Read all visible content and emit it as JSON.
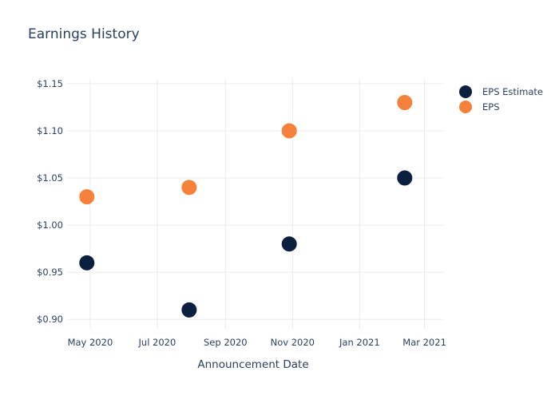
{
  "chart_data": {
    "type": "scatter",
    "title": "Earnings History",
    "xlabel": "Announcement Date",
    "ylabel": "",
    "x_axis": {
      "type": "date",
      "range": [
        "2020-04-10",
        "2021-03-18"
      ],
      "ticks": [
        {
          "date": "2020-05-01",
          "label": "May 2020"
        },
        {
          "date": "2020-07-01",
          "label": "Jul 2020"
        },
        {
          "date": "2020-09-01",
          "label": "Sep 2020"
        },
        {
          "date": "2020-11-01",
          "label": "Nov 2020"
        },
        {
          "date": "2021-01-01",
          "label": "Jan 2021"
        },
        {
          "date": "2021-03-01",
          "label": "Mar 2021"
        }
      ]
    },
    "y_axis": {
      "range": [
        0.89,
        1.155
      ],
      "ticks": [
        {
          "value": 0.9,
          "label": "$0.90"
        },
        {
          "value": 0.95,
          "label": "$0.95"
        },
        {
          "value": 1.0,
          "label": "$1.00"
        },
        {
          "value": 1.05,
          "label": "$1.05"
        },
        {
          "value": 1.1,
          "label": "$1.10"
        },
        {
          "value": 1.15,
          "label": "$1.15"
        }
      ]
    },
    "grid": true,
    "legend_position": "top-right",
    "series": [
      {
        "name": "EPS Estimate",
        "color": "#0b1f3f",
        "points": [
          {
            "x": "2020-04-28",
            "y": 0.96
          },
          {
            "x": "2020-07-30",
            "y": 0.91
          },
          {
            "x": "2020-10-29",
            "y": 0.98
          },
          {
            "x": "2021-02-11",
            "y": 1.05
          }
        ]
      },
      {
        "name": "EPS",
        "color": "#f5813b",
        "points": [
          {
            "x": "2020-04-28",
            "y": 1.03
          },
          {
            "x": "2020-07-30",
            "y": 1.04
          },
          {
            "x": "2020-10-29",
            "y": 1.1
          },
          {
            "x": "2021-02-11",
            "y": 1.13
          }
        ]
      }
    ]
  }
}
